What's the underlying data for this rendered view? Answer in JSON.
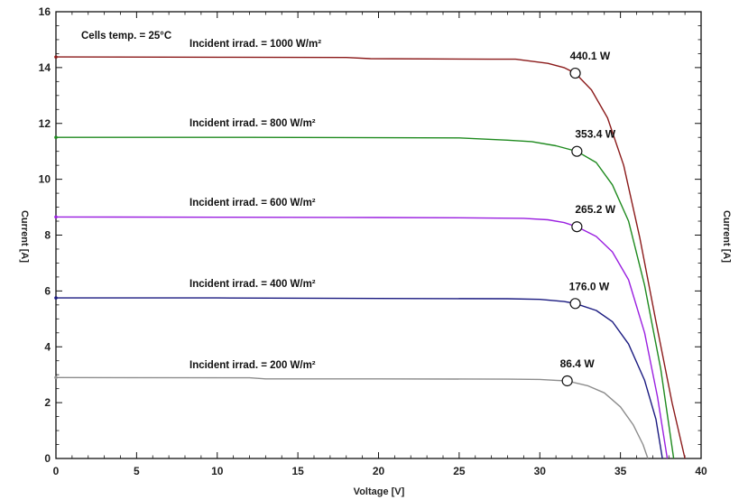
{
  "chart_data": {
    "type": "line",
    "title": "",
    "xlabel": "Voltage  [V]",
    "ylabel": "Current  [A]",
    "ylabel_right": "Current  [A]",
    "xlim": [
      0,
      40
    ],
    "ylim": [
      0,
      16
    ],
    "xticks": [
      0,
      5,
      10,
      15,
      20,
      25,
      30,
      35,
      40
    ],
    "yticks": [
      0,
      2,
      4,
      6,
      8,
      10,
      12,
      14,
      16
    ],
    "grid": false,
    "annotation": "Cells temp. = 25°C",
    "series": [
      {
        "name": "Incident irrad. = 1000 W/m²",
        "color": "#8b1a1a",
        "values": [
          [
            0,
            14.38
          ],
          [
            10,
            14.37
          ],
          [
            18,
            14.36
          ],
          [
            19.5,
            14.32
          ],
          [
            27,
            14.3
          ],
          [
            28.5,
            14.3
          ],
          [
            30.5,
            14.15
          ],
          [
            31.5,
            14.0
          ],
          [
            32.2,
            13.8
          ],
          [
            33.2,
            13.2
          ],
          [
            34.2,
            12.2
          ],
          [
            35.2,
            10.5
          ],
          [
            36.2,
            7.9
          ],
          [
            37.2,
            4.9
          ],
          [
            38.2,
            2.0
          ],
          [
            39.0,
            0
          ]
        ],
        "mpp": {
          "v": 32.2,
          "i": 13.8,
          "label": "440.1 W"
        }
      },
      {
        "name": "Incident irrad. = 800 W/m²",
        "color": "#1e8a1e",
        "values": [
          [
            0,
            11.5
          ],
          [
            12,
            11.5
          ],
          [
            25,
            11.48
          ],
          [
            28,
            11.4
          ],
          [
            29.5,
            11.35
          ],
          [
            31,
            11.2
          ],
          [
            32.3,
            11.0
          ],
          [
            33.5,
            10.6
          ],
          [
            34.5,
            9.8
          ],
          [
            35.5,
            8.5
          ],
          [
            36.5,
            6.2
          ],
          [
            37.5,
            3.2
          ],
          [
            38.3,
            0
          ]
        ],
        "mpp": {
          "v": 32.3,
          "i": 11.0,
          "label": "353.4 W"
        }
      },
      {
        "name": "Incident irrad. = 600 W/m²",
        "color": "#9a1fe0",
        "values": [
          [
            0,
            8.65
          ],
          [
            10,
            8.64
          ],
          [
            20,
            8.63
          ],
          [
            25,
            8.62
          ],
          [
            29,
            8.6
          ],
          [
            30.5,
            8.55
          ],
          [
            31.5,
            8.45
          ],
          [
            32.3,
            8.3
          ],
          [
            33.5,
            7.95
          ],
          [
            34.5,
            7.4
          ],
          [
            35.5,
            6.4
          ],
          [
            36.5,
            4.5
          ],
          [
            37.3,
            2.2
          ],
          [
            37.9,
            0
          ]
        ],
        "mpp": {
          "v": 32.3,
          "i": 8.3,
          "label": "265.2 W"
        }
      },
      {
        "name": "Incident irrad. = 400 W/m²",
        "color": "#1a1a80",
        "values": [
          [
            0,
            5.75
          ],
          [
            10,
            5.75
          ],
          [
            20,
            5.73
          ],
          [
            28,
            5.72
          ],
          [
            30,
            5.7
          ],
          [
            31.5,
            5.62
          ],
          [
            32.2,
            5.55
          ],
          [
            33.5,
            5.3
          ],
          [
            34.5,
            4.9
          ],
          [
            35.5,
            4.1
          ],
          [
            36.5,
            2.8
          ],
          [
            37.2,
            1.4
          ],
          [
            37.6,
            0
          ]
        ],
        "mpp": {
          "v": 32.2,
          "i": 5.55,
          "label": "176.0 W"
        }
      },
      {
        "name": "Incident irrad. = 200 W/m²",
        "color": "#8c8c8c",
        "values": [
          [
            0,
            2.9
          ],
          [
            12,
            2.89
          ],
          [
            13,
            2.85
          ],
          [
            20,
            2.85
          ],
          [
            28,
            2.84
          ],
          [
            30,
            2.83
          ],
          [
            31,
            2.8
          ],
          [
            31.7,
            2.78
          ],
          [
            33,
            2.6
          ],
          [
            34,
            2.35
          ],
          [
            35,
            1.85
          ],
          [
            35.8,
            1.2
          ],
          [
            36.4,
            0.5
          ],
          [
            36.7,
            0
          ]
        ],
        "mpp": {
          "v": 31.7,
          "i": 2.78,
          "label": "86.4 W"
        }
      }
    ]
  }
}
